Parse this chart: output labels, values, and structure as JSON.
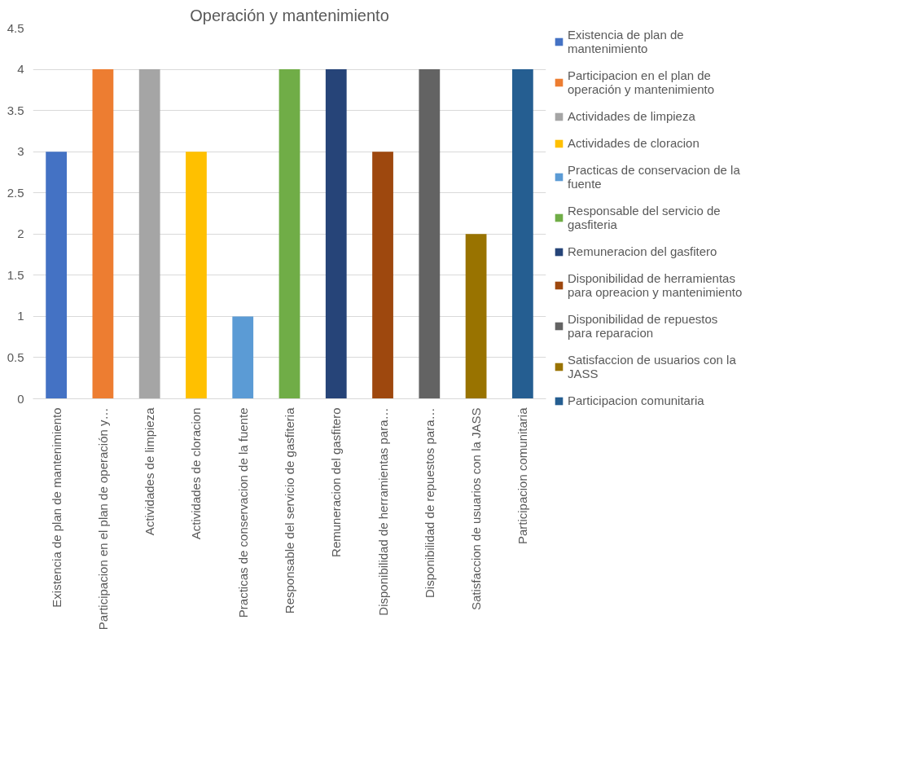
{
  "chart_data": {
    "type": "bar",
    "title": "Operación y mantenimiento",
    "categories": [
      "Existencia de plan de mantenimiento",
      "Participacion en el plan de operación y…",
      "Actividades de limpieza",
      "Actividades de cloracion",
      "Practicas de conservacion de la fuente",
      "Responsable del servicio de gasfiteria",
      "Remuneracion del gasfitero",
      "Disponibilidad de herramientas para…",
      "Disponibilidad de repuestos para…",
      "Satisfaccion de usuarios con la JASS",
      "Participacion comunitaria"
    ],
    "series": [
      {
        "name": "Existencia de plan de mantenimiento",
        "color": "#4472c4",
        "values": [
          3,
          null,
          null,
          null,
          null,
          null,
          null,
          null,
          null,
          null,
          null
        ]
      },
      {
        "name": "Participacion en el plan de operación y mantenimiento",
        "color": "#ed7d31",
        "values": [
          null,
          4,
          null,
          null,
          null,
          null,
          null,
          null,
          null,
          null,
          null
        ]
      },
      {
        "name": "Actividades de limpieza",
        "color": "#a5a5a5",
        "values": [
          null,
          null,
          4,
          null,
          null,
          null,
          null,
          null,
          null,
          null,
          null
        ]
      },
      {
        "name": "Actividades de cloracion",
        "color": "#ffc000",
        "values": [
          null,
          null,
          null,
          3,
          null,
          null,
          null,
          null,
          null,
          null,
          null
        ]
      },
      {
        "name": "Practicas de conservacion de la fuente",
        "color": "#5b9bd5",
        "values": [
          null,
          null,
          null,
          null,
          1,
          null,
          null,
          null,
          null,
          null,
          null
        ]
      },
      {
        "name": "Responsable del servicio de gasfiteria",
        "color": "#70ad47",
        "values": [
          null,
          null,
          null,
          null,
          null,
          4,
          null,
          null,
          null,
          null,
          null
        ]
      },
      {
        "name": "Remuneracion del gasfitero",
        "color": "#264478",
        "values": [
          null,
          null,
          null,
          null,
          null,
          null,
          4,
          null,
          null,
          null,
          null
        ]
      },
      {
        "name": "Disponibilidad de herramientas para opreacion y mantenimiento",
        "color": "#9e480e",
        "values": [
          null,
          null,
          null,
          null,
          null,
          null,
          null,
          3,
          null,
          null,
          null
        ]
      },
      {
        "name": "Disponibilidad de repuestos para reparacion",
        "color": "#636363",
        "values": [
          null,
          null,
          null,
          null,
          null,
          null,
          null,
          null,
          4,
          null,
          null
        ]
      },
      {
        "name": "Satisfaccion de usuarios con la JASS",
        "color": "#997300",
        "values": [
          null,
          null,
          null,
          null,
          null,
          null,
          null,
          null,
          null,
          2,
          null
        ]
      },
      {
        "name": "Participacion comunitaria",
        "color": "#255e91",
        "values": [
          null,
          null,
          null,
          null,
          null,
          null,
          null,
          null,
          null,
          null,
          4
        ]
      }
    ],
    "ylim": [
      0,
      4.5
    ],
    "yticks": [
      0,
      0.5,
      1,
      1.5,
      2,
      2.5,
      3,
      3.5,
      4,
      4.5
    ],
    "grid": "y",
    "legend": "right"
  }
}
